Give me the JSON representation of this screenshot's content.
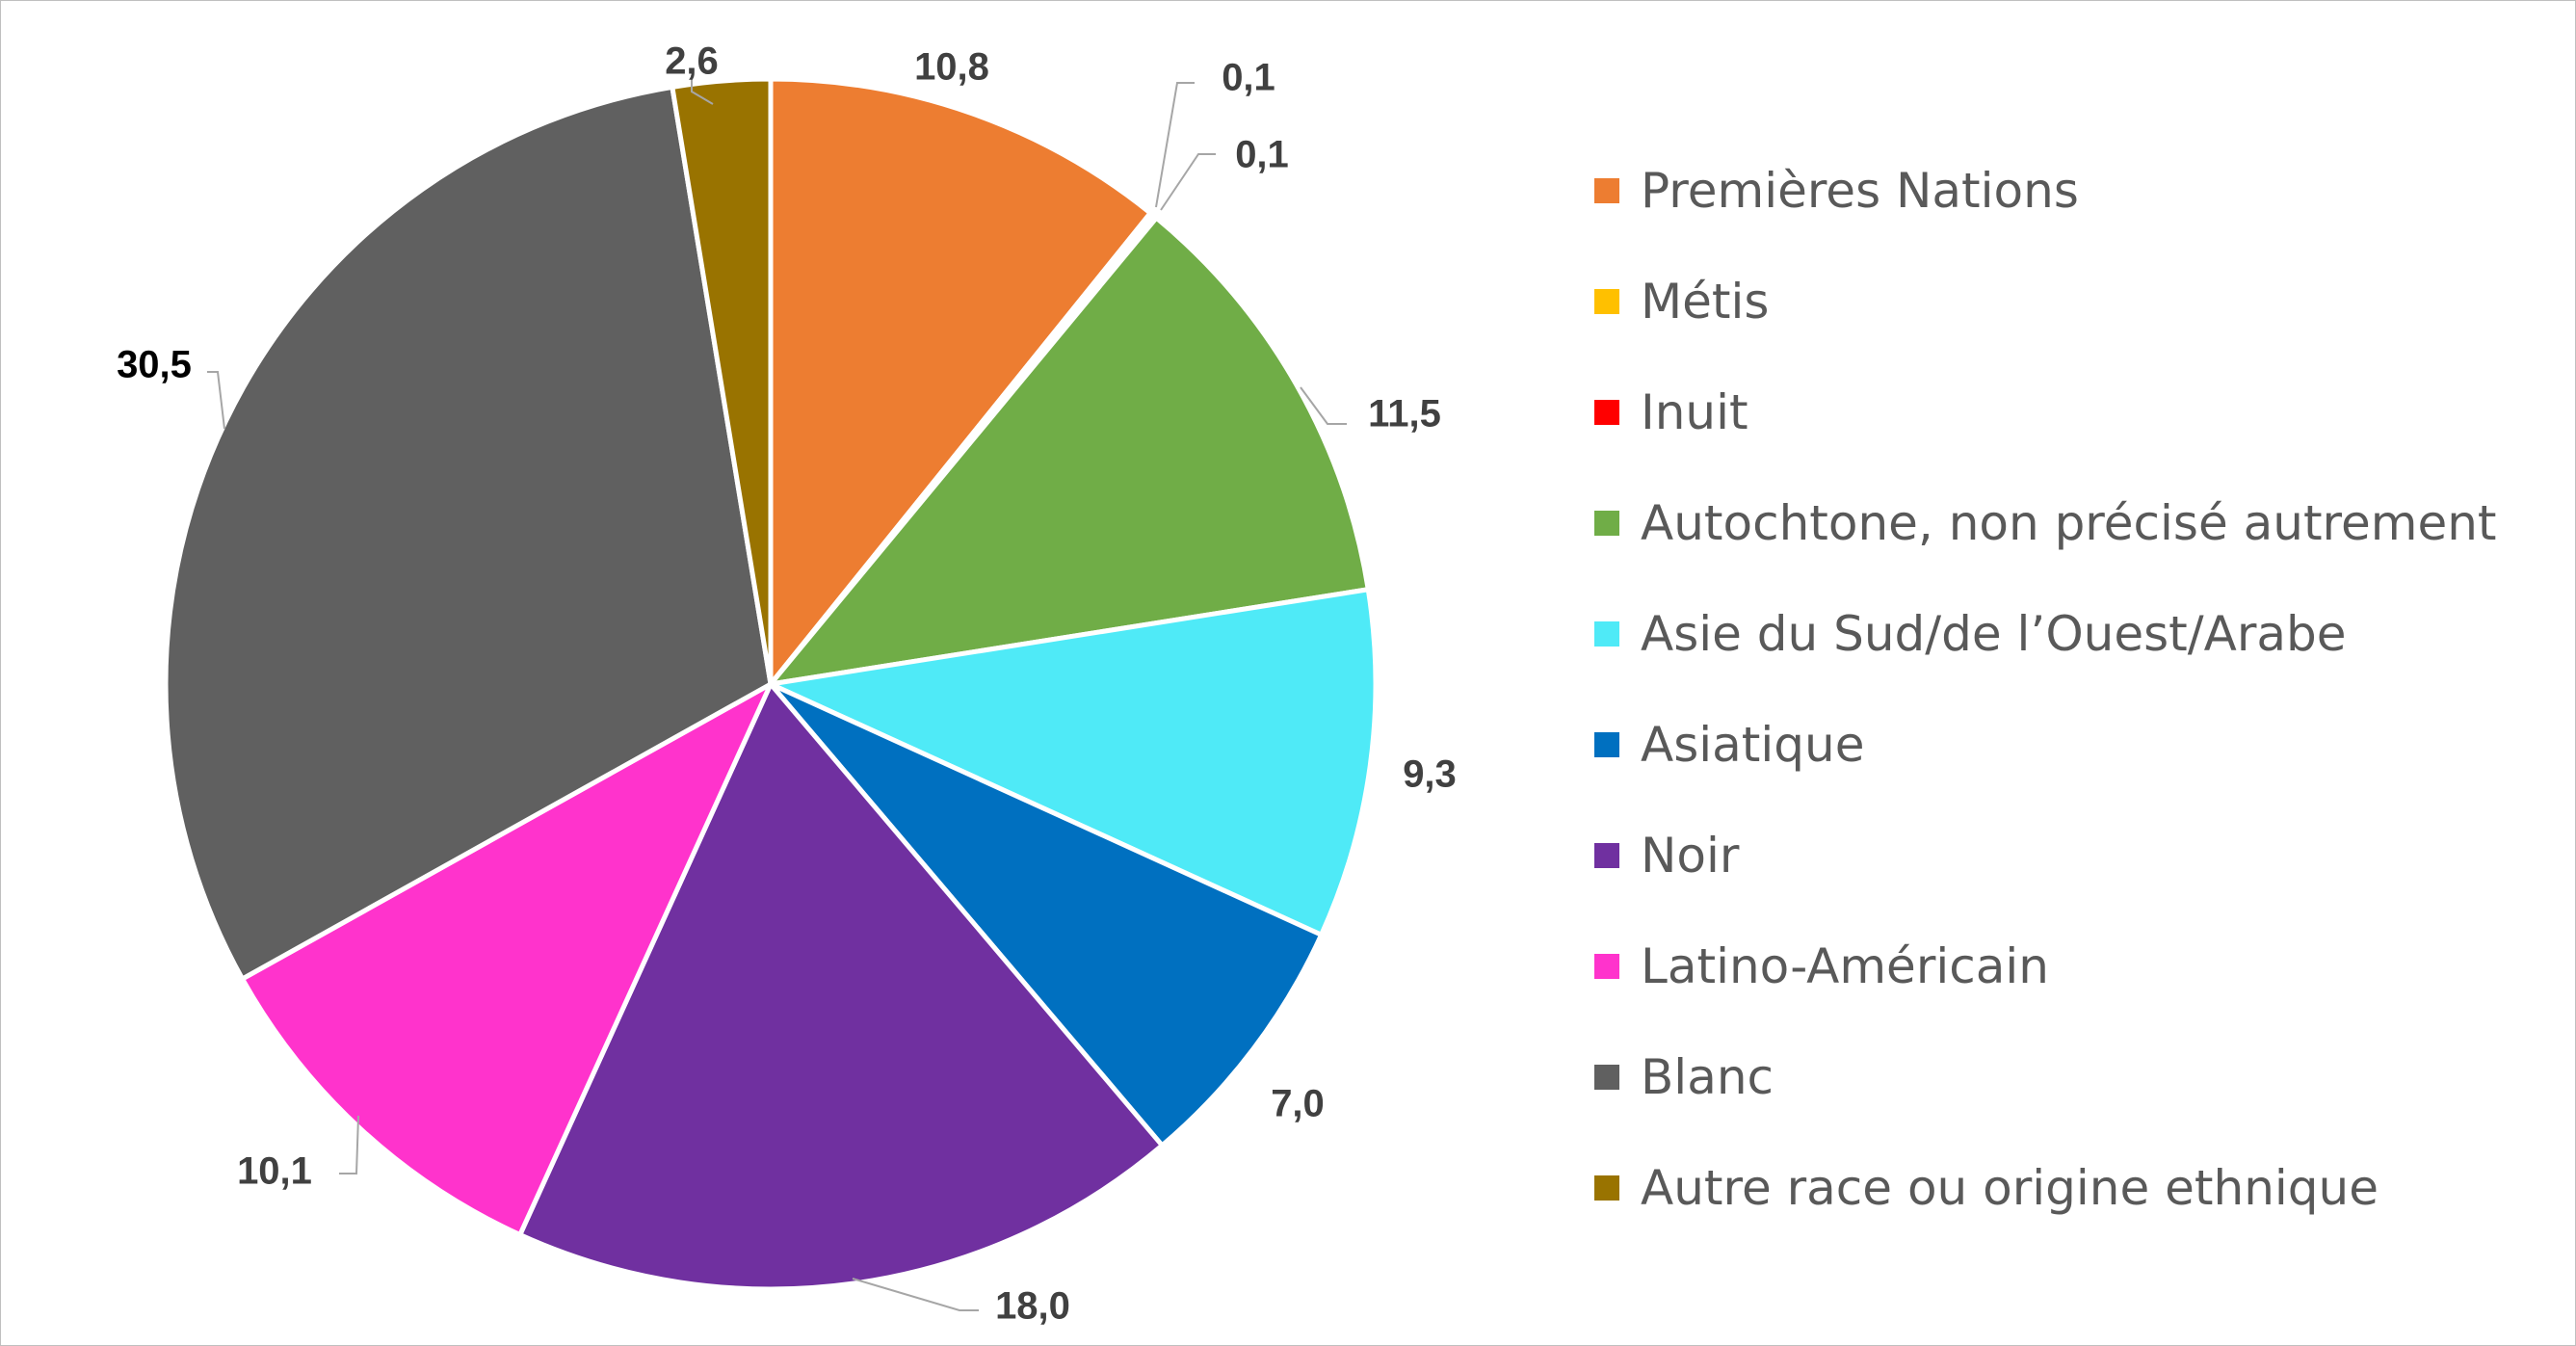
{
  "chart_data": {
    "type": "pie",
    "title": "",
    "legend_position": "right",
    "slices": [
      {
        "label": "Premières Nations",
        "value": 10.8,
        "display": "10,8",
        "color": "#ED7D31"
      },
      {
        "label": "Métis",
        "value": 0.1,
        "display": "0,1",
        "color": "#FFC000"
      },
      {
        "label": "Inuit",
        "value": 0.1,
        "display": "0,1",
        "color": "#FF0000"
      },
      {
        "label": "Autochtone, non précisé autrement",
        "value": 11.5,
        "display": "11,5",
        "color": "#70AD47"
      },
      {
        "label": "Asie du Sud/de l’Ouest/Arabe",
        "value": 9.3,
        "display": "9,3",
        "color": "#4FEAF7"
      },
      {
        "label": "Asiatique",
        "value": 7.0,
        "display": "7,0",
        "color": "#0070C0"
      },
      {
        "label": "Noir",
        "value": 18.0,
        "display": "18,0",
        "color": "#7030A0"
      },
      {
        "label": "Latino-Américain",
        "value": 10.1,
        "display": "10,1",
        "color": "#FF33CC"
      },
      {
        "label": "Blanc",
        "value": 30.5,
        "display": "30,5",
        "color": "#606060"
      },
      {
        "label": "Autre race ou origine ethnique",
        "value": 2.6,
        "display": "2,6",
        "color": "#997300"
      }
    ]
  }
}
